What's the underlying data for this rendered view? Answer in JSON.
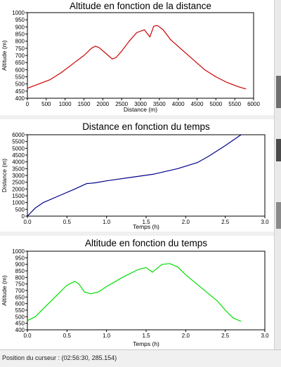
{
  "status_bar": {
    "cursor_position": "Position du curseur : (02:56:30, 285.154)"
  },
  "colors": {
    "altitude_distance": "#cc0000",
    "distance_time": "#00008b",
    "altitude_time": "#00dd00"
  },
  "chart_data": [
    {
      "type": "line",
      "title": "Altitude en fonction de la distance",
      "xlabel": "Distance (m)",
      "ylabel": "Altitude (m)",
      "xlim": [
        0,
        6000
      ],
      "ylim": [
        400,
        1000
      ],
      "xticks": [
        "0",
        "500",
        "1000",
        "1500",
        "2000",
        "2500",
        "3000",
        "3500",
        "4000",
        "4500",
        "5000",
        "5500",
        "6000"
      ],
      "yticks": [
        "400",
        "450",
        "500",
        "550",
        "600",
        "650",
        "700",
        "750",
        "800",
        "850",
        "900",
        "950",
        "1000"
      ],
      "series": [
        {
          "color": "#cc0000",
          "x": [
            0,
            300,
            600,
            900,
            1200,
            1500,
            1700,
            1800,
            1900,
            2100,
            2250,
            2350,
            2500,
            2700,
            2900,
            3100,
            3250,
            3350,
            3450,
            3600,
            3800,
            4100,
            4400,
            4700,
            5000,
            5300,
            5600,
            5800
          ],
          "y": [
            470,
            500,
            530,
            580,
            640,
            700,
            750,
            765,
            755,
            710,
            675,
            685,
            730,
            800,
            860,
            880,
            830,
            905,
            910,
            880,
            810,
            740,
            670,
            600,
            550,
            510,
            480,
            465
          ]
        }
      ]
    },
    {
      "type": "line",
      "title": "Distance en fonction du temps",
      "xlabel": "Temps (h)",
      "ylabel": "Distance (m)",
      "xlim": [
        0,
        3
      ],
      "ylim": [
        0,
        6000
      ],
      "xticks": [
        "0.0",
        "0.5",
        "1.0",
        "1.5",
        "2.0",
        "2.5",
        "3.0"
      ],
      "yticks": [
        "0",
        "500",
        "1000",
        "1500",
        "2000",
        "2500",
        "3000",
        "3500",
        "4000",
        "4500",
        "5000",
        "5500",
        "6000"
      ],
      "series": [
        {
          "color": "#00008b",
          "x": [
            0,
            0.1,
            0.2,
            0.4,
            0.6,
            0.75,
            0.85,
            1.0,
            1.3,
            1.6,
            1.9,
            2.15,
            2.3,
            2.5,
            2.6,
            2.7
          ],
          "y": [
            0,
            600,
            1000,
            1500,
            2000,
            2400,
            2450,
            2600,
            2850,
            3100,
            3500,
            3950,
            4450,
            5200,
            5600,
            6000
          ]
        }
      ]
    },
    {
      "type": "line",
      "title": "Altitude en fonction du temps",
      "xlabel": "Temps (h)",
      "ylabel": "Altitude (m)",
      "xlim": [
        0,
        3
      ],
      "ylim": [
        400,
        1000
      ],
      "xticks": [
        "0.0",
        "0.5",
        "1.0",
        "1.5",
        "2.0",
        "2.5",
        "3.0"
      ],
      "yticks": [
        "400",
        "450",
        "500",
        "550",
        "600",
        "650",
        "700",
        "750",
        "800",
        "850",
        "900",
        "950",
        "1000"
      ],
      "series": [
        {
          "color": "#00dd00",
          "x": [
            0,
            0.1,
            0.2,
            0.3,
            0.4,
            0.5,
            0.6,
            0.65,
            0.72,
            0.8,
            0.9,
            1.0,
            1.2,
            1.4,
            1.5,
            1.58,
            1.7,
            1.8,
            1.9,
            2.0,
            2.2,
            2.4,
            2.5,
            2.6,
            2.7
          ],
          "y": [
            470,
            500,
            560,
            620,
            680,
            740,
            770,
            750,
            690,
            675,
            690,
            730,
            800,
            860,
            875,
            840,
            900,
            905,
            880,
            820,
            720,
            620,
            550,
            490,
            465
          ]
        }
      ]
    }
  ]
}
